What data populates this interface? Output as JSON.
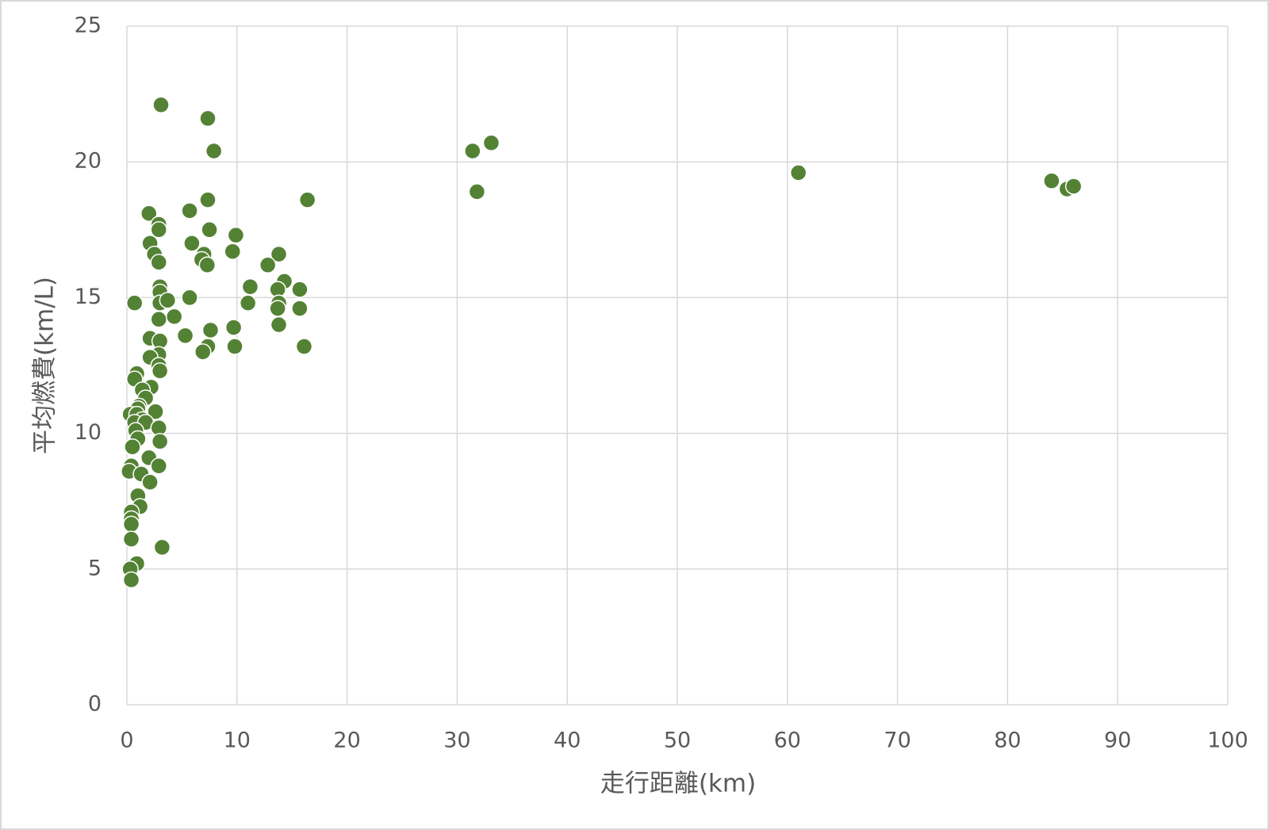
{
  "chart_data": {
    "type": "scatter",
    "x_label": "走行距離(km)",
    "y_label": "平均燃費(km/L)",
    "color": "#548235",
    "grid": true,
    "xlim": [
      0,
      100
    ],
    "xticks": [
      0,
      10,
      20,
      30,
      40,
      50,
      60,
      70,
      80,
      90,
      100
    ],
    "ylim": [
      0,
      25
    ],
    "yticks": [
      0,
      5,
      10,
      15,
      20,
      25
    ],
    "x": [
      3.1,
      7.35,
      7.9,
      31.4,
      33.1,
      31.8,
      61.0,
      84.0,
      85.4,
      86.0,
      16.4,
      7.35,
      5.7,
      2.0,
      2.9,
      2.9,
      7.5,
      9.9,
      2.1,
      5.9,
      9.6,
      2.5,
      13.8,
      7.0,
      6.8,
      2.9,
      7.3,
      12.8,
      14.3,
      11.2,
      3.0,
      13.7,
      15.7,
      3.0,
      5.7,
      0.7,
      3.0,
      3.7,
      11.0,
      13.8,
      13.7,
      15.7,
      4.3,
      2.9,
      13.8,
      9.7,
      7.6,
      5.3,
      2.1,
      3.0,
      7.35,
      9.8,
      16.1,
      6.9,
      2.9,
      2.1,
      2.9,
      3.0,
      0.9,
      0.7,
      2.2,
      1.4,
      1.7,
      1.1,
      1.0,
      2.6,
      0.3,
      0.9,
      1.4,
      0.7,
      1.7,
      2.9,
      0.8,
      1.0,
      3.0,
      0.5,
      2.0,
      2.9,
      0.4,
      0.2,
      1.3,
      2.1,
      1.0,
      1.2,
      0.4,
      0.4,
      0.4,
      0.4,
      3.2,
      0.9,
      0.3,
      0.4
    ],
    "values": [
      22.1,
      21.6,
      20.4,
      20.4,
      20.7,
      18.9,
      19.6,
      19.3,
      19.0,
      19.1,
      18.6,
      18.6,
      18.2,
      18.1,
      17.7,
      17.5,
      17.5,
      17.3,
      17.0,
      17.0,
      16.7,
      16.6,
      16.6,
      16.6,
      16.4,
      16.3,
      16.2,
      16.2,
      15.6,
      15.4,
      15.4,
      15.3,
      15.3,
      15.2,
      15.0,
      14.8,
      14.8,
      14.9,
      14.8,
      14.8,
      14.6,
      14.6,
      14.3,
      14.2,
      14.0,
      13.9,
      13.8,
      13.6,
      13.5,
      13.4,
      13.2,
      13.2,
      13.2,
      13.0,
      12.9,
      12.8,
      12.5,
      12.3,
      12.2,
      12.0,
      11.7,
      11.6,
      11.3,
      11.0,
      10.9,
      10.8,
      10.7,
      10.7,
      10.5,
      10.4,
      10.4,
      10.2,
      10.1,
      9.8,
      9.7,
      9.5,
      9.1,
      8.8,
      8.8,
      8.6,
      8.5,
      8.2,
      7.7,
      7.3,
      7.1,
      6.85,
      6.65,
      6.1,
      5.8,
      5.2,
      5.0,
      4.6
    ]
  }
}
